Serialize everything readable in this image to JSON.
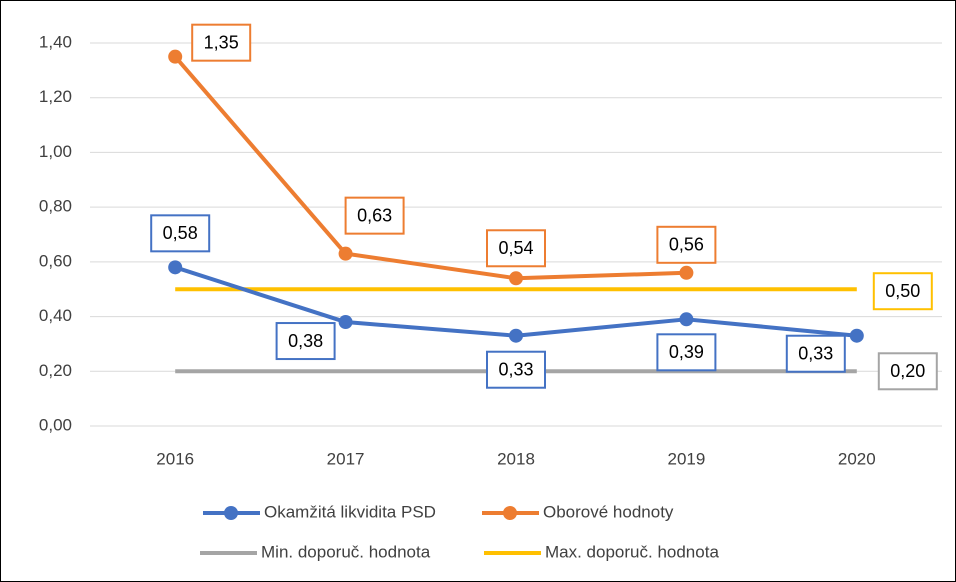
{
  "chart_data": {
    "type": "line",
    "categories": [
      "2016",
      "2017",
      "2018",
      "2019",
      "2020"
    ],
    "series": [
      {
        "name": "Okamžitá likvidita PSD",
        "color": "#4472c4",
        "marker": true,
        "values": [
          0.58,
          0.38,
          0.33,
          0.39,
          0.33
        ],
        "value_labels": [
          "0,58",
          "0,38",
          "0,33",
          "0,39",
          "0,33"
        ]
      },
      {
        "name": "Oborové hodnoty",
        "color": "#ed7d31",
        "marker": true,
        "values": [
          1.35,
          0.63,
          0.54,
          0.56,
          null
        ],
        "value_labels": [
          "1,35",
          "0,63",
          "0,54",
          "0,56",
          null
        ]
      },
      {
        "name": "Min. doporuč. hodnota",
        "color": "#a5a5a5",
        "marker": false,
        "values": [
          0.2,
          0.2,
          0.2,
          0.2,
          0.2
        ],
        "value_labels": [
          null,
          null,
          null,
          null,
          "0,20"
        ]
      },
      {
        "name": "Max. doporuč. hodnota",
        "color": "#ffc000",
        "marker": false,
        "values": [
          0.5,
          0.5,
          0.5,
          0.5,
          0.5
        ],
        "value_labels": [
          null,
          null,
          null,
          null,
          "0,50"
        ]
      }
    ],
    "ylim": [
      0,
      1.4
    ],
    "yticks": [
      {
        "value": 0,
        "label": "0,00"
      },
      {
        "value": 0.2,
        "label": "0,20"
      },
      {
        "value": 0.4,
        "label": "0,40"
      },
      {
        "value": 0.6,
        "label": "0,60"
      },
      {
        "value": 0.8,
        "label": "0,80"
      },
      {
        "value": 1.0,
        "label": "1,00"
      },
      {
        "value": 1.2,
        "label": "1,20"
      },
      {
        "value": 1.4,
        "label": "1,40"
      }
    ],
    "grid": true
  }
}
